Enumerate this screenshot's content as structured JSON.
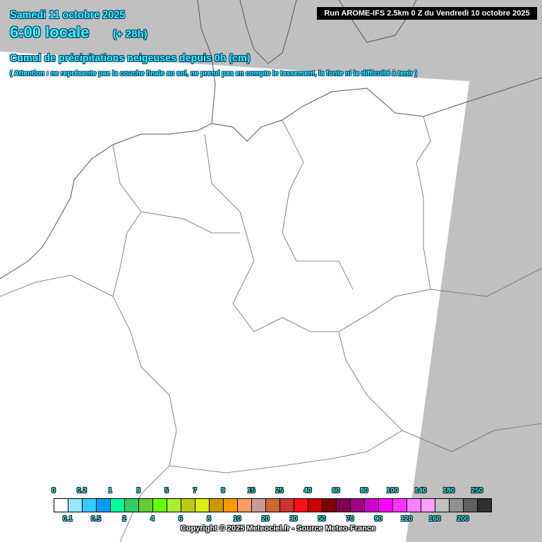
{
  "header": {
    "date": "Samedi 11 octobre 2025",
    "time": "6:00 locale",
    "lead": "(+ 28h)",
    "title": "Cumul de précipitations neigeuses depuis 0h (cm)",
    "warning": "( Attention : ne représente pas la couche finale au sol, ne prend pas en compte le tassement, la fonte ni la difficulté à tenir )",
    "run": "Run AROME-IFS 2.5km 0 Z du Vendredi 10 octobre 2025"
  },
  "legend": {
    "thresholds": [
      "0",
      "0.1",
      "0.2",
      "0.5",
      "1",
      "2",
      "3",
      "4",
      "5",
      "6",
      "7",
      "8",
      "9",
      "10",
      "15",
      "20",
      "25",
      "30",
      "40",
      "50",
      "60",
      "70",
      "80",
      "90",
      "100",
      "120",
      "140",
      "160",
      "180",
      "200",
      "250"
    ],
    "colors": [
      "#ffffff",
      "#99e6ff",
      "#33ccff",
      "#0099ff",
      "#00ff99",
      "#33cc66",
      "#66cc33",
      "#66ff00",
      "#aaee33",
      "#bbcc11",
      "#ddee11",
      "#cc9900",
      "#ff9900",
      "#ff9966",
      "#cc9999",
      "#cc6633",
      "#cc3333",
      "#ff1111",
      "#cc0000",
      "#800000",
      "#800050",
      "#a00080",
      "#cc00cc",
      "#ff00ff",
      "#ff33ff",
      "#ff80ff",
      "#ffa0ff",
      "#c0c0c0",
      "#909090",
      "#606060",
      "#303030"
    ]
  },
  "copyright": "Copyright © 2025 Meteociel.fr - Source Meteo-France",
  "map": {
    "outside_domain_color": "#c0c0c0",
    "domain_color": "#ffffff",
    "snow_present": false
  }
}
